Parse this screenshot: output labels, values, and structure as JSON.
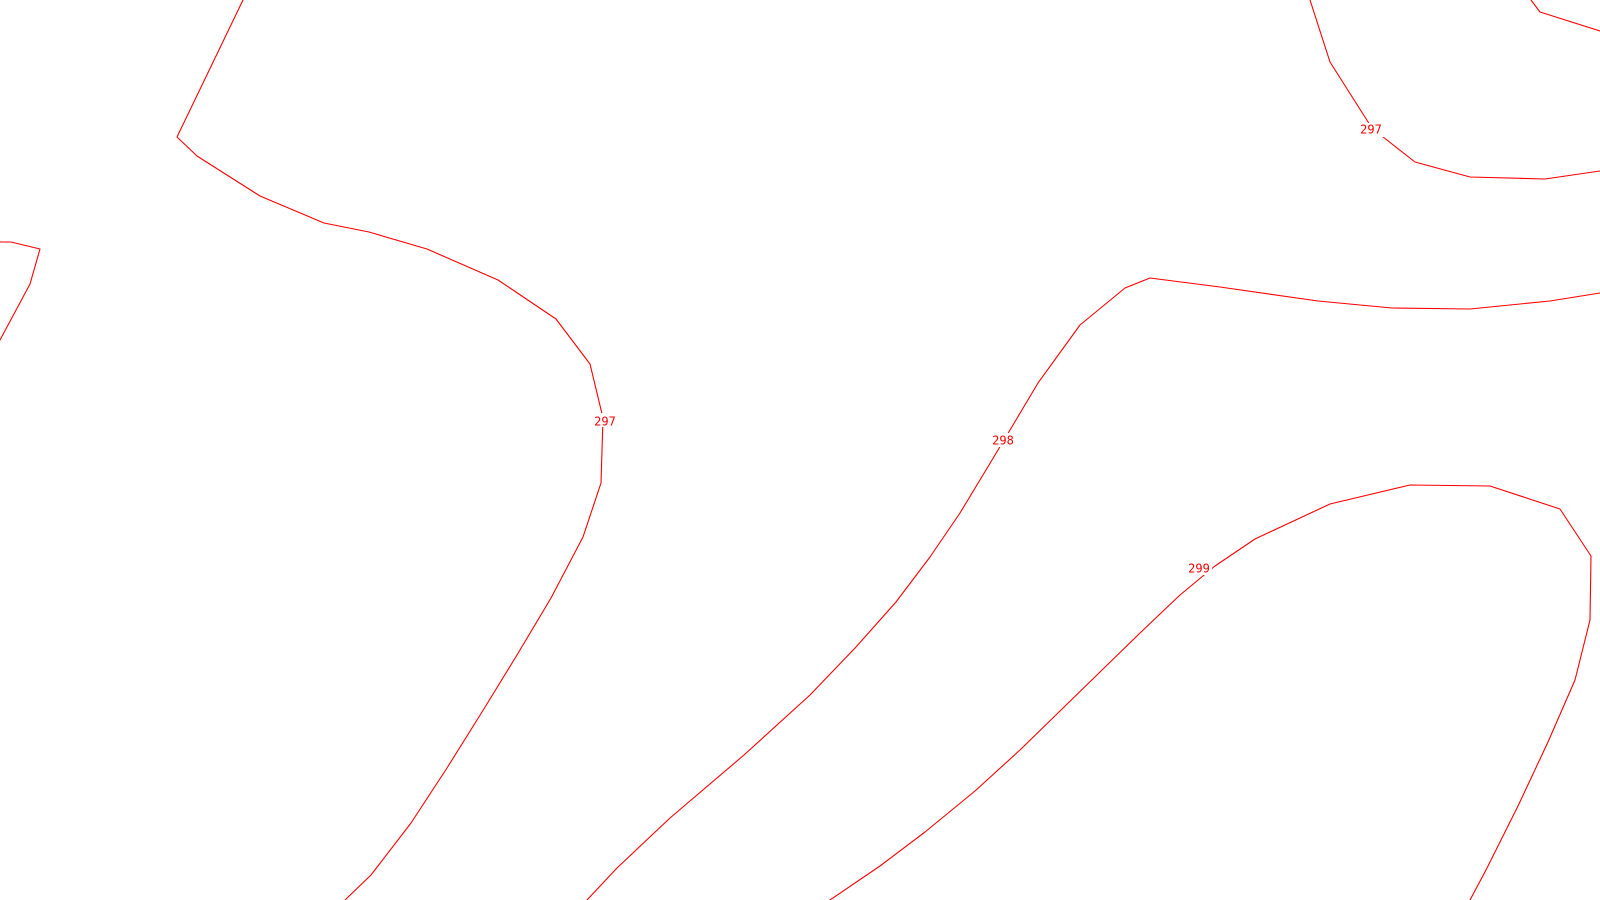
{
  "map": {
    "background": "#ffffff",
    "contour_color": "#ff0000",
    "contours": [
      {
        "id": "a",
        "elevation": "297"
      },
      {
        "id": "b",
        "elevation": "297"
      },
      {
        "id": "c",
        "elevation": "298"
      },
      {
        "id": "d",
        "elevation": "299"
      },
      {
        "id": "e",
        "elevation": "297"
      }
    ]
  }
}
